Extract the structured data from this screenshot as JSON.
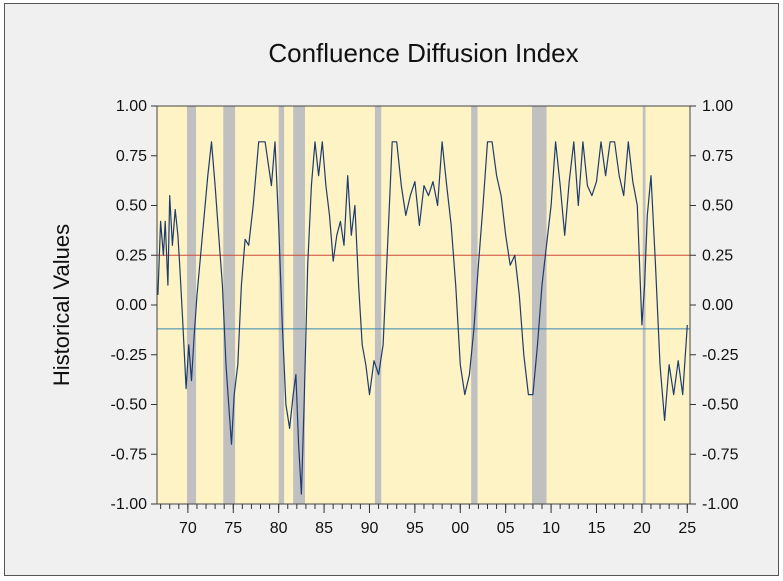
{
  "chart_data": {
    "type": "line",
    "title": "Confluence Diffusion Index",
    "ylabel": "Historical Values",
    "xlabel": "",
    "xlim": [
      1966.6,
      2025.3
    ],
    "ylim": [
      -1.0,
      1.0
    ],
    "y_ticks": [
      1.0,
      0.75,
      0.5,
      0.25,
      0.0,
      -0.25,
      -0.5,
      -0.75,
      -1.0
    ],
    "y_tick_labels_left": [
      "1.00",
      "0.75",
      "0.50",
      "0.25",
      "0.00",
      "-0.25",
      "-0.50",
      "-0.75",
      "-1.00"
    ],
    "y_tick_labels_right": [
      "1.00",
      "0.75",
      "0.50",
      "0.25",
      "0.00",
      "-0.25",
      "-0.50",
      "-0.75",
      "-1.00"
    ],
    "x_ticks": [
      1970,
      1975,
      1980,
      1985,
      1990,
      1995,
      2000,
      2005,
      2010,
      2015,
      2020,
      2025
    ],
    "x_tick_labels": [
      "70",
      "75",
      "80",
      "85",
      "90",
      "95",
      "00",
      "05",
      "10",
      "15",
      "20",
      "25"
    ],
    "grid": false,
    "background_color": "#fdf3c4",
    "line_color": "#1f3b6e",
    "reference_lines": [
      {
        "y": 0.25,
        "color": "#d04a3a"
      },
      {
        "y": -0.12,
        "color": "#3a88b0"
      }
    ],
    "recession_color": "#c0c0c0",
    "recession_shading": [
      [
        1969.9,
        1970.9
      ],
      [
        1973.9,
        1975.2
      ],
      [
        1980.0,
        1980.6
      ],
      [
        1981.6,
        1982.9
      ],
      [
        1990.6,
        1991.3
      ],
      [
        2001.2,
        2001.9
      ],
      [
        2007.9,
        2009.5
      ],
      [
        2020.1,
        2020.4
      ]
    ],
    "series": [
      {
        "x": [
          1966.7,
          1967.0,
          1967.3,
          1967.5,
          1967.8,
          1968.0,
          1968.3,
          1968.6,
          1968.9,
          1969.1,
          1969.4,
          1969.8,
          1970.1,
          1970.4,
          1970.7,
          1971.0,
          1971.4,
          1971.8,
          1972.2,
          1972.6,
          1973.0,
          1973.4,
          1973.8,
          1974.2,
          1974.5,
          1974.8,
          1975.1,
          1975.5,
          1975.9,
          1976.3,
          1976.7,
          1977.2,
          1977.8,
          1978.5,
          1979.2,
          1979.6,
          1980.0,
          1980.4,
          1980.8,
          1981.2,
          1981.6,
          1981.9,
          1982.2,
          1982.5,
          1982.8,
          1983.2,
          1983.6,
          1984.0,
          1984.4,
          1984.8,
          1985.2,
          1985.6,
          1986.0,
          1986.4,
          1986.8,
          1987.2,
          1987.6,
          1988.0,
          1988.4,
          1988.8,
          1989.2,
          1989.6,
          1990.0,
          1990.5,
          1991.0,
          1991.5,
          1992.0,
          1992.5,
          1993.0,
          1993.5,
          1994.0,
          1994.5,
          1995.0,
          1995.5,
          1996.0,
          1996.5,
          1997.0,
          1997.5,
          1998.0,
          1998.5,
          1999.0,
          1999.5,
          2000.0,
          2000.5,
          2001.0,
          2001.5,
          2002.0,
          2002.5,
          2003.0,
          2003.5,
          2004.0,
          2004.5,
          2005.0,
          2005.5,
          2006.0,
          2006.5,
          2007.0,
          2007.5,
          2008.0,
          2008.5,
          2009.0,
          2009.5,
          2010.0,
          2010.5,
          2011.0,
          2011.5,
          2012.0,
          2012.5,
          2013.0,
          2013.5,
          2014.0,
          2014.5,
          2015.0,
          2015.5,
          2016.0,
          2016.5,
          2017.0,
          2017.5,
          2018.0,
          2018.5,
          2019.0,
          2019.5,
          2020.0,
          2020.3,
          2020.6,
          2021.0,
          2021.5,
          2022.0,
          2022.5,
          2023.0,
          2023.5,
          2024.0,
          2024.5,
          2025.0
        ],
        "y": [
          0.05,
          0.42,
          0.25,
          0.42,
          0.1,
          0.55,
          0.3,
          0.48,
          0.35,
          0.2,
          -0.05,
          -0.42,
          -0.2,
          -0.38,
          -0.15,
          0.05,
          0.25,
          0.45,
          0.65,
          0.82,
          0.6,
          0.35,
          0.1,
          -0.3,
          -0.5,
          -0.7,
          -0.45,
          -0.3,
          0.1,
          0.33,
          0.3,
          0.5,
          0.82,
          0.82,
          0.6,
          0.82,
          0.4,
          -0.1,
          -0.5,
          -0.62,
          -0.45,
          -0.35,
          -0.7,
          -0.95,
          -0.5,
          0.2,
          0.6,
          0.82,
          0.65,
          0.82,
          0.6,
          0.45,
          0.22,
          0.35,
          0.42,
          0.3,
          0.65,
          0.35,
          0.5,
          0.1,
          -0.2,
          -0.3,
          -0.45,
          -0.28,
          -0.35,
          -0.2,
          0.3,
          0.82,
          0.82,
          0.6,
          0.45,
          0.55,
          0.62,
          0.4,
          0.6,
          0.55,
          0.62,
          0.5,
          0.82,
          0.6,
          0.4,
          0.1,
          -0.3,
          -0.45,
          -0.35,
          -0.12,
          0.2,
          0.5,
          0.82,
          0.82,
          0.65,
          0.55,
          0.35,
          0.2,
          0.25,
          0.05,
          -0.25,
          -0.45,
          -0.45,
          -0.2,
          0.1,
          0.3,
          0.5,
          0.82,
          0.6,
          0.35,
          0.62,
          0.82,
          0.5,
          0.82,
          0.6,
          0.55,
          0.62,
          0.82,
          0.65,
          0.82,
          0.82,
          0.65,
          0.55,
          0.82,
          0.62,
          0.5,
          -0.1,
          0.1,
          0.45,
          0.65,
          0.2,
          -0.3,
          -0.58,
          -0.3,
          -0.45,
          -0.28,
          -0.45,
          -0.1
        ]
      }
    ]
  }
}
